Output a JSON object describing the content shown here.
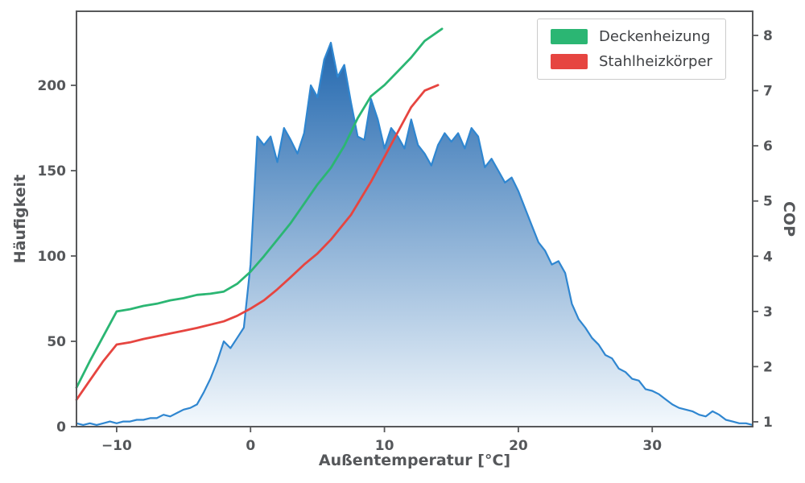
{
  "chart_data": {
    "type": "area+line",
    "title": "",
    "xlabel": "Außentemperatur [°C]",
    "ylabel_left": "Häufigkeit",
    "ylabel_right": "COP",
    "xlim": [
      -13,
      37.5
    ],
    "ylim_left": [
      0,
      243.4
    ],
    "ylim_right": [
      0.9125,
      8.4375
    ],
    "xticks": [
      -10,
      0,
      10,
      20,
      30
    ],
    "xtick_labels": [
      "−10",
      "0",
      "10",
      "20",
      "30"
    ],
    "yticks_left": [
      0,
      50,
      100,
      150,
      200
    ],
    "ytick_left_labels": [
      "0",
      "50",
      "100",
      "150",
      "200"
    ],
    "yticks_right": [
      1,
      2,
      3,
      4,
      5,
      6,
      7,
      8
    ],
    "ytick_right_labels": [
      "1",
      "2",
      "3",
      "4",
      "5",
      "6",
      "7",
      "8"
    ],
    "grid": false,
    "legend_position": "upper right",
    "histogram": {
      "name": "Häufigkeit",
      "axis": "left",
      "x_start": -13,
      "x_step": 0.5,
      "y": [
        2,
        1,
        2,
        1,
        2,
        3,
        2,
        3,
        3,
        4,
        4,
        5,
        5,
        7,
        6,
        8,
        10,
        11,
        13,
        20,
        28,
        38,
        50,
        46,
        52,
        58,
        95,
        170,
        165,
        170,
        155,
        175,
        168,
        160,
        172,
        200,
        193,
        215,
        225,
        205,
        212,
        190,
        170,
        168,
        192,
        180,
        163,
        175,
        170,
        163,
        180,
        165,
        160,
        153,
        165,
        172,
        167,
        172,
        163,
        175,
        170,
        152,
        157,
        150,
        143,
        146,
        138,
        128,
        118,
        108,
        103,
        95,
        97,
        90,
        72,
        63,
        58,
        52,
        48,
        42,
        40,
        34,
        32,
        28,
        27,
        22,
        21,
        19,
        16,
        13,
        11,
        10,
        9,
        7,
        6,
        9,
        7,
        4,
        3,
        2,
        2,
        1
      ]
    },
    "series": [
      {
        "name": "Deckenheizung",
        "color": "#2bb673",
        "axis": "right",
        "x": [
          -13,
          -12,
          -11,
          -10,
          -9,
          -8,
          -7,
          -6,
          -5,
          -4,
          -3,
          -2,
          -1,
          0,
          1,
          2,
          3,
          4,
          5,
          6,
          7,
          8,
          9,
          10,
          11,
          12,
          13,
          14.3
        ],
        "y": [
          1.62,
          2.1,
          2.55,
          3.0,
          3.04,
          3.1,
          3.14,
          3.2,
          3.24,
          3.3,
          3.32,
          3.36,
          3.5,
          3.72,
          4.0,
          4.3,
          4.6,
          4.95,
          5.3,
          5.6,
          6.0,
          6.5,
          6.9,
          7.1,
          7.35,
          7.6,
          7.9,
          8.12
        ]
      },
      {
        "name": "Stahlheizkörper",
        "color": "#e64540",
        "axis": "right",
        "x": [
          -13,
          -12,
          -11,
          -10,
          -9,
          -8,
          -7,
          -6,
          -5,
          -4,
          -3,
          -2,
          -1,
          0,
          1,
          2,
          3,
          4,
          5,
          6,
          7,
          7.5,
          8,
          9,
          10,
          11,
          12,
          13,
          14
        ],
        "y": [
          1.4,
          1.75,
          2.1,
          2.4,
          2.44,
          2.5,
          2.55,
          2.6,
          2.65,
          2.7,
          2.76,
          2.82,
          2.92,
          3.05,
          3.2,
          3.4,
          3.62,
          3.85,
          4.05,
          4.3,
          4.6,
          4.75,
          4.95,
          5.35,
          5.8,
          6.25,
          6.7,
          7.0,
          7.1
        ]
      }
    ]
  },
  "colors": {
    "histogram_line": "#2f86d0",
    "gradient_top": "#2066ae",
    "gradient_bottom": "#f4f9fd",
    "axis": "#57585a",
    "text": "#55575a",
    "legend_border": "#cbcbcb",
    "background": "#ffffff"
  }
}
